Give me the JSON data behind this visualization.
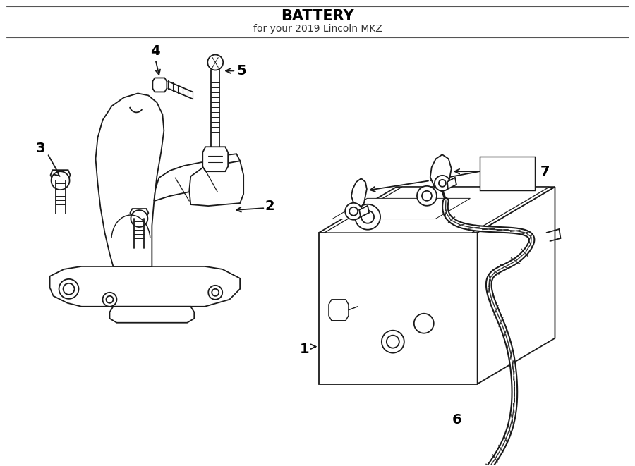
{
  "title": "BATTERY",
  "subtitle": "for your 2019 Lincoln MKZ",
  "bg": "#ffffff",
  "lc": "#1a1a1a",
  "figsize": [
    9.0,
    6.61
  ],
  "dpi": 100,
  "lw": 1.3
}
